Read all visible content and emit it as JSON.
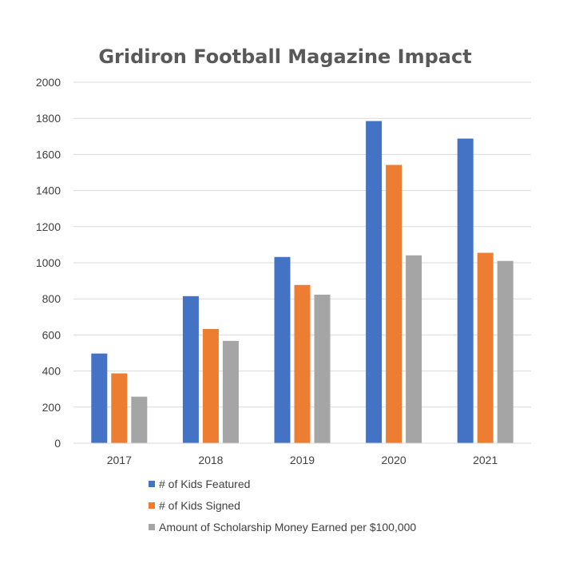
{
  "chart_data": {
    "type": "bar",
    "title": "Gridiron Football Magazine Impact",
    "xlabel": "",
    "ylabel": "",
    "categories": [
      "2017",
      "2018",
      "2019",
      "2020",
      "2021"
    ],
    "ylim": [
      0,
      2000
    ],
    "yticks": [
      "0",
      "200",
      "400",
      "600",
      "800",
      "1000",
      "1200",
      "1400",
      "1600",
      "1800",
      "2000"
    ],
    "grid": true,
    "legend_position": "bottom",
    "series": [
      {
        "name": "# of Kids Featured",
        "color": "#4472C4",
        "values": [
          497,
          815,
          1032,
          1785,
          1688
        ]
      },
      {
        "name": "# of Kids Signed",
        "color": "#ED7D31",
        "values": [
          387,
          633,
          877,
          1542,
          1055
        ]
      },
      {
        "name": "Amount of Scholarship Money Earned per $100,000",
        "color": "#A5A5A5",
        "values": [
          258,
          567,
          823,
          1041,
          1010
        ]
      }
    ]
  }
}
